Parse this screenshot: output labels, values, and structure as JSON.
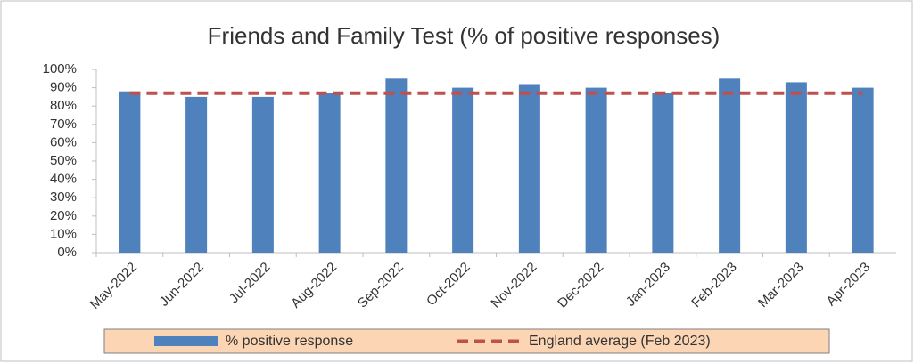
{
  "chart_data": {
    "type": "bar",
    "title": "Friends and Family Test (% of positive responses)",
    "categories": [
      "May-2022",
      "Jun-2022",
      "Jul-2022",
      "Aug-2022",
      "Sep-2022",
      "Oct-2022",
      "Nov-2022",
      "Dec-2022",
      "Jan-2023",
      "Feb-2023",
      "Mar-2023",
      "Apr-2023"
    ],
    "series": [
      {
        "name": "% positive response",
        "type": "bar",
        "color": "#4f81bd",
        "values": [
          88,
          85,
          85,
          87,
          95,
          90,
          92,
          90,
          87,
          95,
          93,
          90
        ]
      },
      {
        "name": "England average (Feb 2023)",
        "type": "line",
        "color": "#c0504d",
        "values": [
          87,
          87,
          87,
          87,
          87,
          87,
          87,
          87,
          87,
          87,
          87,
          87
        ]
      }
    ],
    "ylim": [
      0,
      100
    ],
    "yticks": [
      {
        "value": 0,
        "label": "0%"
      },
      {
        "value": 10,
        "label": "10%"
      },
      {
        "value": 20,
        "label": "20%"
      },
      {
        "value": 30,
        "label": "30%"
      },
      {
        "value": 40,
        "label": "40%"
      },
      {
        "value": 50,
        "label": "50%"
      },
      {
        "value": 60,
        "label": "60%"
      },
      {
        "value": 70,
        "label": "70%"
      },
      {
        "value": 80,
        "label": "80%"
      },
      {
        "value": 90,
        "label": "90%"
      },
      {
        "value": 100,
        "label": "100%"
      }
    ],
    "legend": "bottom"
  }
}
